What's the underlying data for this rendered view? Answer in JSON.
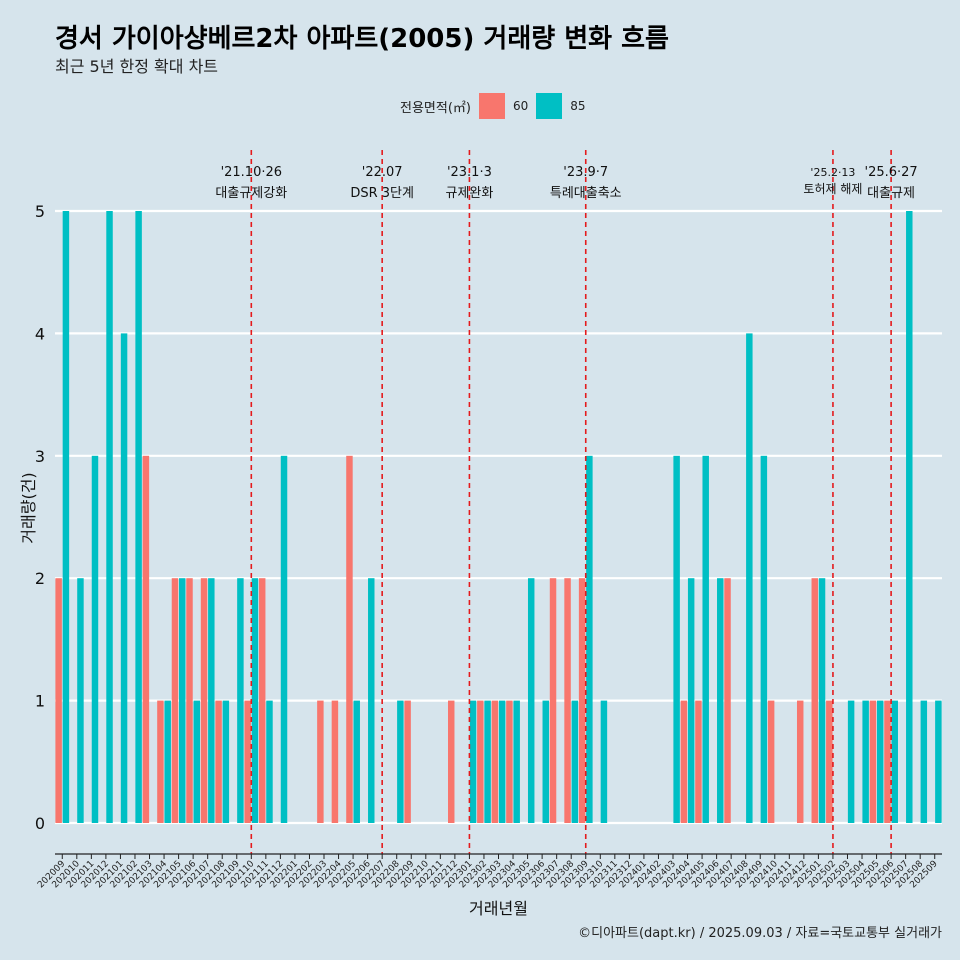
{
  "chart_data": {
    "type": "bar",
    "title": "경서 가이아샹베르2차 아파트(2005) 거래량 변화 흐름",
    "subtitle": "최근 5년 한정 확대 차트",
    "xlabel": "거래년월",
    "ylabel": "거래량(건)",
    "caption": "©디아파트(dapt.kr) / 2025.09.03 / 자료=국토교통부 실거래가",
    "legend_title": "전용면적(㎡)",
    "legend_position": "top",
    "ylim": [
      0,
      5
    ],
    "yticks": [
      "0",
      "1",
      "2",
      "3",
      "4",
      "5"
    ],
    "grid": true,
    "categories": [
      "202009",
      "202010",
      "202011",
      "202012",
      "202101",
      "202102",
      "202103",
      "202104",
      "202105",
      "202106",
      "202107",
      "202108",
      "202109",
      "202110",
      "202111",
      "202112",
      "202201",
      "202202",
      "202203",
      "202204",
      "202205",
      "202206",
      "202207",
      "202208",
      "202209",
      "202210",
      "202211",
      "202212",
      "202301",
      "202302",
      "202303",
      "202304",
      "202305",
      "202306",
      "202307",
      "202308",
      "202309",
      "202310",
      "202311",
      "202312",
      "202401",
      "202402",
      "202403",
      "202404",
      "202405",
      "202406",
      "202407",
      "202408",
      "202409",
      "202410",
      "202411",
      "202412",
      "202501",
      "202502",
      "202503",
      "202504",
      "202505",
      "202506",
      "202507",
      "202508",
      "202509"
    ],
    "series": [
      {
        "name": "60",
        "color": "#f8766d",
        "values": [
          2,
          0,
          0,
          0,
          0,
          0,
          3,
          1,
          2,
          2,
          2,
          1,
          0,
          1,
          2,
          0,
          0,
          0,
          1,
          1,
          3,
          0,
          0,
          0,
          1,
          0,
          0,
          1,
          0,
          1,
          1,
          1,
          0,
          0,
          2,
          2,
          2,
          0,
          0,
          0,
          0,
          0,
          0,
          1,
          1,
          0,
          2,
          0,
          0,
          1,
          0,
          1,
          2,
          1,
          0,
          0,
          1,
          1,
          0,
          0,
          0
        ]
      },
      {
        "name": "85",
        "color": "#00bfc4",
        "values": [
          5,
          2,
          3,
          5,
          4,
          5,
          0,
          1,
          2,
          1,
          2,
          1,
          2,
          2,
          1,
          3,
          0,
          0,
          0,
          0,
          1,
          2,
          0,
          1,
          0,
          0,
          0,
          0,
          1,
          1,
          1,
          1,
          2,
          1,
          0,
          1,
          3,
          1,
          0,
          0,
          0,
          0,
          3,
          2,
          3,
          2,
          0,
          4,
          3,
          0,
          0,
          0,
          2,
          0,
          1,
          1,
          1,
          1,
          5,
          1,
          1
        ]
      }
    ],
    "annotations": [
      {
        "x": "202110",
        "date": "'21.10·26",
        "label": "대출규제강화"
      },
      {
        "x": "202207",
        "date": "'22.07",
        "label": "DSR 3단계"
      },
      {
        "x": "202301",
        "date": "'23.1·3",
        "label": "규제완화"
      },
      {
        "x": "202309",
        "date": "'23.9·7",
        "label": "특례대출축소"
      },
      {
        "x": "202502",
        "date": "'25.2·13",
        "label": "토허제 해제"
      },
      {
        "x": "202506",
        "date": "'25.6·27",
        "label": "대출규제"
      }
    ]
  }
}
